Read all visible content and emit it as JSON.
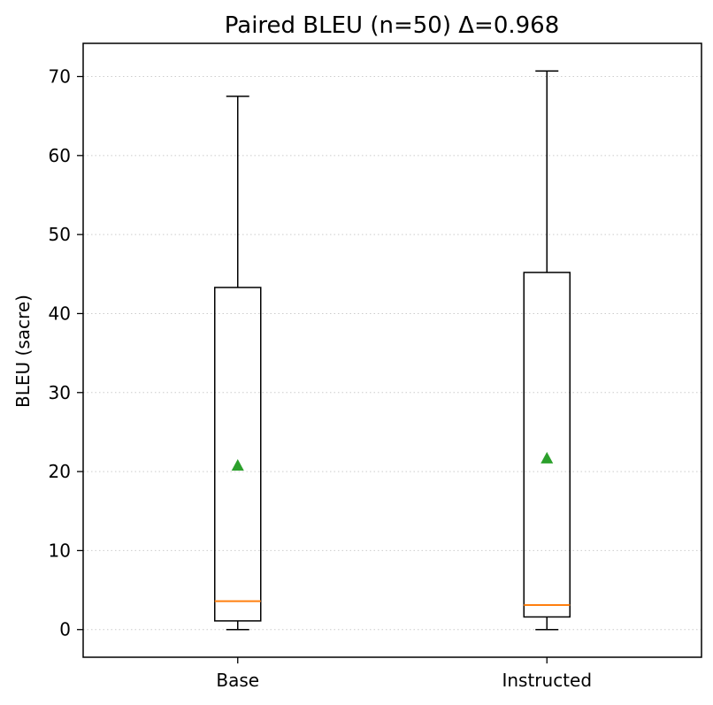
{
  "chart_data": {
    "type": "box",
    "title": "Paired BLEU (n=50) Δ=0.968",
    "xlabel": "",
    "ylabel": "BLEU (sacre)",
    "ylim": [
      -3.5,
      74.2
    ],
    "yticks": [
      0,
      10,
      20,
      30,
      40,
      50,
      60,
      70
    ],
    "ytick_labels": [
      "0",
      "10",
      "20",
      "30",
      "40",
      "50",
      "60",
      "70"
    ],
    "grid": "y-dotted",
    "categories": [
      "Base",
      "Instructed"
    ],
    "series": [
      {
        "category": "Base",
        "whisker_low": 0.0,
        "q1": 1.1,
        "median": 3.6,
        "q3": 43.3,
        "whisker_high": 67.5,
        "mean": 20.8
      },
      {
        "category": "Instructed",
        "whisker_low": 0.0,
        "q1": 1.6,
        "median": 3.1,
        "q3": 45.2,
        "whisker_high": 70.7,
        "mean": 21.7
      }
    ],
    "colors": {
      "box": "#000000",
      "median": "#ff7f0e",
      "mean": "#2ca02c",
      "grid": "#cccccc"
    }
  }
}
